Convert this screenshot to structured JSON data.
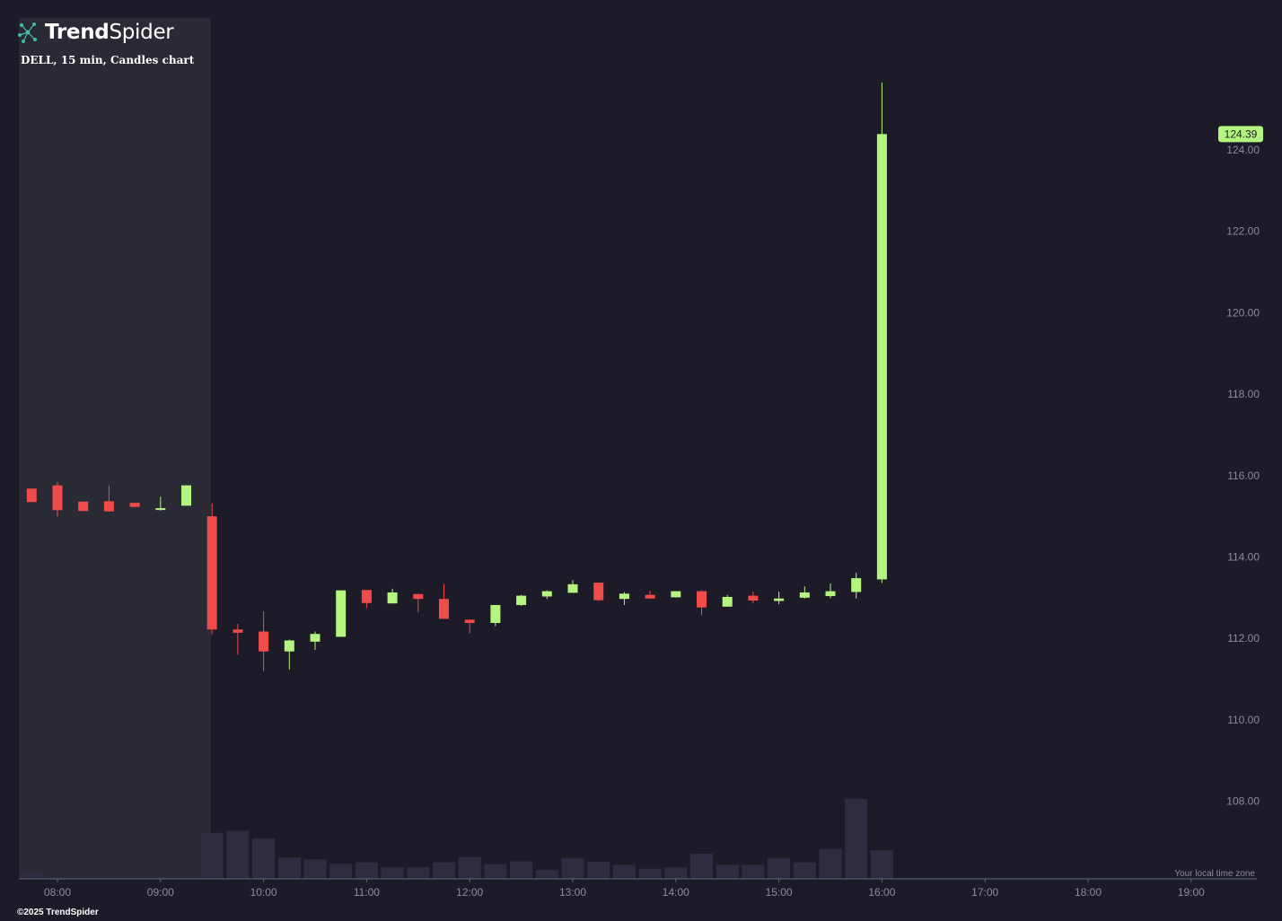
{
  "brand": {
    "name_bold": "Trend",
    "name_light": "Spider",
    "copyright": "©2025 TrendSpider"
  },
  "chart_info": {
    "title": "DELL, 15 min, Candles chart",
    "timezone_note": "Your local time zone"
  },
  "colors": {
    "background": "#1c1b27",
    "premarket_shade": "#2a2a35",
    "up": "#b3f57e",
    "down": "#f04b4b",
    "volume": "#2d2d3f",
    "axis_text": "#8b8d98",
    "price_badge": "#b3f57e"
  },
  "chart_data": {
    "type": "candlestick",
    "symbol": "DELL",
    "interval": "15 min",
    "x_ticks": [
      "08:00",
      "09:00",
      "10:00",
      "11:00",
      "12:00",
      "13:00",
      "14:00",
      "15:00",
      "16:00",
      "17:00",
      "18:00",
      "19:00"
    ],
    "y_ticks": [
      "108.00",
      "110.00",
      "112.00",
      "114.00",
      "116.00",
      "118.00",
      "120.00",
      "122.00",
      "124.00"
    ],
    "ylim": [
      106.2,
      125.7
    ],
    "last_price": "124.39",
    "premarket_shaded_until": "09:30",
    "grid": false,
    "candles": [
      {
        "t": "07:45",
        "o": 115.68,
        "h": 115.68,
        "l": 115.35,
        "c": 115.35
      },
      {
        "t": "08:00",
        "o": 115.76,
        "h": 115.85,
        "l": 114.99,
        "c": 115.15
      },
      {
        "t": "08:15",
        "o": 115.36,
        "h": 115.36,
        "l": 115.13,
        "c": 115.13
      },
      {
        "t": "08:30",
        "o": 115.37,
        "h": 115.75,
        "l": 115.12,
        "c": 115.12
      },
      {
        "t": "08:45",
        "o": 115.33,
        "h": 115.33,
        "l": 115.23,
        "c": 115.23
      },
      {
        "t": "09:00",
        "o": 115.2,
        "h": 115.48,
        "l": 115.14,
        "c": 115.2
      },
      {
        "t": "09:15",
        "o": 115.26,
        "h": 115.76,
        "l": 115.26,
        "c": 115.76
      },
      {
        "t": "09:30",
        "o": 115.0,
        "h": 115.32,
        "l": 112.1,
        "c": 112.22
      },
      {
        "t": "09:45",
        "o": 112.22,
        "h": 112.36,
        "l": 111.6,
        "c": 112.14
      },
      {
        "t": "10:00",
        "o": 112.17,
        "h": 112.67,
        "l": 111.2,
        "c": 111.68
      },
      {
        "t": "10:15",
        "o": 111.68,
        "h": 111.97,
        "l": 111.24,
        "c": 111.95
      },
      {
        "t": "10:30",
        "o": 111.92,
        "h": 112.17,
        "l": 111.72,
        "c": 112.11
      },
      {
        "t": "10:45",
        "o": 112.04,
        "h": 113.18,
        "l": 112.04,
        "c": 113.18
      },
      {
        "t": "11:00",
        "o": 113.19,
        "h": 113.19,
        "l": 112.75,
        "c": 112.87
      },
      {
        "t": "11:15",
        "o": 112.86,
        "h": 113.22,
        "l": 112.86,
        "c": 113.13
      },
      {
        "t": "11:30",
        "o": 113.09,
        "h": 113.09,
        "l": 112.64,
        "c": 112.97
      },
      {
        "t": "11:45",
        "o": 112.97,
        "h": 113.34,
        "l": 112.48,
        "c": 112.48
      },
      {
        "t": "12:00",
        "o": 112.46,
        "h": 112.46,
        "l": 112.12,
        "c": 112.38
      },
      {
        "t": "12:15",
        "o": 112.38,
        "h": 112.82,
        "l": 112.3,
        "c": 112.82
      },
      {
        "t": "12:30",
        "o": 112.82,
        "h": 113.07,
        "l": 112.8,
        "c": 113.05
      },
      {
        "t": "12:45",
        "o": 113.03,
        "h": 113.18,
        "l": 112.97,
        "c": 113.16
      },
      {
        "t": "13:00",
        "o": 113.12,
        "h": 113.43,
        "l": 113.12,
        "c": 113.33
      },
      {
        "t": "13:15",
        "o": 113.37,
        "h": 113.37,
        "l": 112.92,
        "c": 112.94
      },
      {
        "t": "13:30",
        "o": 112.97,
        "h": 113.14,
        "l": 112.82,
        "c": 113.1
      },
      {
        "t": "13:45",
        "o": 113.07,
        "h": 113.17,
        "l": 112.97,
        "c": 112.98
      },
      {
        "t": "14:00",
        "o": 113.01,
        "h": 113.16,
        "l": 113.0,
        "c": 113.16
      },
      {
        "t": "14:15",
        "o": 113.16,
        "h": 113.18,
        "l": 112.57,
        "c": 112.76
      },
      {
        "t": "14:30",
        "o": 112.78,
        "h": 113.07,
        "l": 112.78,
        "c": 113.02
      },
      {
        "t": "14:45",
        "o": 113.05,
        "h": 113.15,
        "l": 112.86,
        "c": 112.93
      },
      {
        "t": "15:00",
        "o": 112.92,
        "h": 113.15,
        "l": 112.84,
        "c": 112.98
      },
      {
        "t": "15:15",
        "o": 113.0,
        "h": 113.28,
        "l": 112.98,
        "c": 113.13
      },
      {
        "t": "15:30",
        "o": 113.04,
        "h": 113.35,
        "l": 112.99,
        "c": 113.16
      },
      {
        "t": "15:45",
        "o": 113.14,
        "h": 113.61,
        "l": 112.98,
        "c": 113.48
      },
      {
        "t": "16:00",
        "o": 113.45,
        "h": 125.65,
        "l": 113.36,
        "c": 124.39
      }
    ],
    "volume_relative": [
      0.11,
      0,
      0,
      0,
      0,
      0.01,
      0,
      0.95,
      0.99,
      0.83,
      0.44,
      0.4,
      0.31,
      0.34,
      0.24,
      0.24,
      0.34,
      0.45,
      0.3,
      0.36,
      0.18,
      0.43,
      0.35,
      0.29,
      0.21,
      0.24,
      0.52,
      0.29,
      0.29,
      0.43,
      0.34,
      0.62,
      1.65,
      0.59
    ]
  }
}
